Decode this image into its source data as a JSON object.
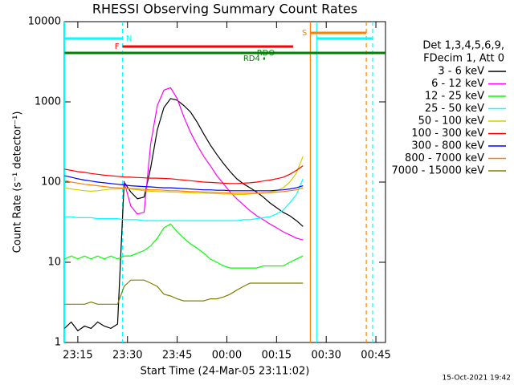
{
  "chart_data": {
    "type": "line",
    "title": "RHESSI Observing Summary Count Rates",
    "x_label": "Start Time (24-Mar-05 23:11:02)",
    "y_label": "Count Rate (s⁻¹ detector⁻¹)",
    "footer": "15-Oct-2021 19:42",
    "legend_title": [
      "Det 1,3,4,5,6,9,",
      "FDecim 1, Att 0"
    ],
    "log_y": true,
    "xlim": [
      -4.1,
      92.9
    ],
    "ylim": [
      1,
      10000
    ],
    "xticks": [
      {
        "value": 0,
        "label": "23:15"
      },
      {
        "value": 15,
        "label": "23:30"
      },
      {
        "value": 30,
        "label": "23:45"
      },
      {
        "value": 45,
        "label": "00:00"
      },
      {
        "value": 60,
        "label": "00:15"
      },
      {
        "value": 75,
        "label": "00:30"
      },
      {
        "value": 90,
        "label": "00:45"
      }
    ],
    "yticks": [
      1,
      10,
      100,
      1000,
      10000
    ],
    "x": [
      -4,
      -2,
      0,
      2,
      4,
      6,
      8,
      10,
      12,
      14,
      16,
      18,
      20,
      22,
      24,
      26,
      28,
      30,
      32,
      34,
      36,
      38,
      40,
      42,
      44,
      46,
      48,
      50,
      52,
      54,
      56,
      58,
      60,
      62,
      64,
      66,
      68
    ],
    "series": [
      {
        "name": "3 - 6 keV",
        "color": "#000000",
        "values": [
          1.5,
          1.8,
          1.4,
          1.6,
          1.5,
          1.8,
          1.6,
          1.5,
          1.7,
          100,
          75,
          62,
          65,
          150,
          450,
          850,
          1100,
          1050,
          900,
          750,
          560,
          400,
          290,
          220,
          170,
          135,
          110,
          95,
          85,
          75,
          65,
          55,
          48,
          42,
          38,
          33,
          28
        ]
      },
      {
        "name": "6 - 12 keV",
        "color": "#ff00ff",
        "values": [
          null,
          null,
          null,
          null,
          null,
          null,
          null,
          null,
          null,
          100,
          50,
          40,
          42,
          300,
          900,
          1400,
          1500,
          1100,
          650,
          420,
          290,
          210,
          160,
          120,
          95,
          75,
          62,
          52,
          44,
          38,
          34,
          30,
          27,
          24,
          22,
          20,
          19
        ]
      },
      {
        "name": "12 - 25 keV",
        "color": "#00ff00",
        "values": [
          11,
          12,
          11,
          12,
          11,
          12,
          11,
          12,
          11,
          12,
          12,
          13,
          14,
          16,
          20,
          27,
          30,
          24,
          20,
          17,
          15,
          13,
          11,
          10,
          9,
          8.5,
          8.5,
          8.5,
          8.5,
          8.5,
          9,
          9,
          9,
          9,
          10,
          11,
          12
        ]
      },
      {
        "name": "25 - 50 keV",
        "color": "#00ffff",
        "values": [
          37,
          37,
          36,
          36,
          36,
          35,
          35,
          35,
          35,
          34,
          34,
          34,
          33,
          33,
          33,
          33,
          33,
          33,
          33,
          33,
          33,
          33,
          33,
          33,
          33,
          33,
          33,
          34,
          34,
          35,
          36,
          37,
          40,
          45,
          55,
          70,
          110
        ]
      },
      {
        "name": "50 - 100 keV",
        "color": "#d0d000",
        "values": [
          85,
          82,
          80,
          78,
          77,
          78,
          80,
          82,
          82,
          83,
          82,
          80,
          78,
          77,
          76,
          76,
          75,
          75,
          74,
          74,
          73,
          73,
          72,
          72,
          71,
          71,
          70,
          70,
          71,
          72,
          73,
          75,
          78,
          85,
          100,
          130,
          210
        ]
      },
      {
        "name": "100 - 300 keV",
        "color": "#ff0000",
        "values": [
          145,
          140,
          135,
          132,
          128,
          125,
          122,
          120,
          118,
          116,
          115,
          114,
          113,
          112,
          112,
          111,
          110,
          108,
          106,
          104,
          102,
          100,
          99,
          98,
          97,
          96,
          96,
          97,
          98,
          100,
          103,
          106,
          110,
          115,
          125,
          140,
          160
        ]
      },
      {
        "name": "300 - 800 keV",
        "color": "#0000ff",
        "values": [
          120,
          115,
          110,
          106,
          103,
          100,
          98,
          96,
          94,
          92,
          90,
          89,
          88,
          87,
          86,
          85,
          85,
          84,
          83,
          82,
          81,
          80,
          80,
          79,
          79,
          78,
          78,
          78,
          78,
          78,
          78,
          78,
          79,
          80,
          82,
          85,
          90
        ]
      },
      {
        "name": "800 - 7000 keV",
        "color": "#ff8000",
        "values": [
          105,
          100,
          97,
          94,
          92,
          90,
          88,
          86,
          85,
          84,
          83,
          82,
          81,
          80,
          80,
          79,
          78,
          78,
          77,
          76,
          76,
          75,
          75,
          74,
          74,
          73,
          73,
          73,
          73,
          73,
          74,
          74,
          75,
          76,
          78,
          80,
          85
        ]
      },
      {
        "name": "7000 - 15000 keV",
        "color": "#808000",
        "values": [
          3,
          3,
          3,
          3,
          3.2,
          3,
          3,
          3,
          3,
          5,
          6,
          6,
          6,
          5.5,
          5,
          4,
          3.8,
          3.5,
          3.3,
          3.3,
          3.3,
          3.3,
          3.5,
          3.5,
          3.7,
          4,
          4.5,
          5,
          5.5,
          5.5,
          5.5,
          5.5,
          5.5,
          5.5,
          5.5,
          5.5,
          5.5
        ]
      }
    ],
    "markers": [
      {
        "x": -4,
        "color": "#00ffff",
        "dashed": false
      },
      {
        "x": 13.5,
        "color": "#00ffff",
        "dashed": true
      },
      {
        "x": 70.2,
        "color": "#ff8000",
        "dashed": false
      },
      {
        "x": 72.1,
        "color": "#00ffff",
        "dashed": false
      },
      {
        "x": 87.1,
        "color": "#ff8000",
        "dashed": true
      },
      {
        "x": 89,
        "color": "#00ffff",
        "dashed": true
      }
    ],
    "flags": [
      {
        "label": "N",
        "color": "#00ffff",
        "x": [
          -4,
          13.5
        ]
      },
      {
        "color": "#00ffff",
        "x": [
          72.1,
          89
        ]
      },
      {
        "label": "S",
        "color": "#ff8000",
        "x": [
          70.2,
          87.1
        ]
      },
      {
        "label": "F",
        "color": "#ff0000",
        "x": [
          13.5,
          65
        ]
      },
      {
        "label": "RDO",
        "color": "#008000",
        "x": [
          -4,
          92.9
        ]
      },
      {
        "label": "RD4",
        "color": "#008000",
        "x": [
          56,
          56.5
        ]
      }
    ]
  }
}
